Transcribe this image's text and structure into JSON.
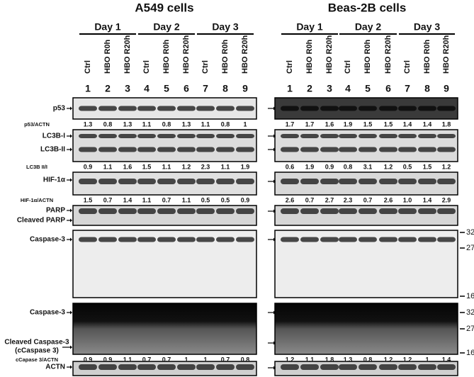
{
  "panels": [
    {
      "title": "A549 cells",
      "days": [
        "Day 1",
        "Day 2",
        "Day 3"
      ],
      "lanes": [
        "Ctrl",
        "HBO R0h",
        "HBO R20h",
        "Ctrl",
        "HBO R0h",
        "HBO R20h",
        "Ctrl",
        "HBO R0h",
        "HBO R20h"
      ],
      "lane_numbers": [
        1,
        2,
        3,
        4,
        5,
        6,
        7,
        8,
        9
      ],
      "quantification": [
        [
          "1.3",
          "0.8",
          "1.3",
          "1.1",
          "0.8",
          "1.3",
          "1.1",
          "0.8",
          "1"
        ],
        [
          "0.9",
          "1.1",
          "1.6",
          "1.5",
          "1.1",
          "1.2",
          "2.3",
          "1.1",
          "1.9"
        ],
        [
          "1.5",
          "0.7",
          "1.4",
          "1.1",
          "0.7",
          "1.1",
          "0.5",
          "0.5",
          "0.9"
        ],
        [
          "0.9",
          "0.9",
          "1.1",
          "0.7",
          "0.7",
          "1",
          "1",
          "0.7",
          "0.8"
        ]
      ]
    },
    {
      "title": "Beas-2B cells",
      "days": [
        "Day 1",
        "Day 2",
        "Day 3"
      ],
      "lanes": [
        "Ctrl",
        "HBO R0h",
        "HBO R20h",
        "Ctrl",
        "HBO R0h",
        "HBO R20h",
        "Ctrl",
        "HBO R0h",
        "HBO R20h"
      ],
      "lane_numbers": [
        1,
        2,
        3,
        4,
        5,
        6,
        7,
        8,
        9
      ],
      "quantification": [
        [
          "1.7",
          "1.7",
          "1.6",
          "1.9",
          "1.5",
          "1.5",
          "1.4",
          "1.4",
          "1.8"
        ],
        [
          "0.6",
          "1.9",
          "0.9",
          "0.8",
          "3.1",
          "1.2",
          "0.5",
          "1.5",
          "1.2"
        ],
        [
          "2.6",
          "0.7",
          "2.7",
          "2.3",
          "0.7",
          "2.6",
          "1.0",
          "1.4",
          "2.9"
        ],
        [
          "1.2",
          "1.1",
          "1.8",
          "1.3",
          "0.8",
          "1.2",
          "1.2",
          "1",
          "1.4"
        ]
      ]
    }
  ],
  "row_labels": [
    "p53",
    "LC3B-I",
    "LC3B-II",
    "HIF-1α",
    "PARP",
    "Cleaved PARP",
    "Caspase-3",
    "Caspase-3",
    "Cleaved Caspase-3",
    "(cCaspase 3)",
    "ACTN"
  ],
  "quant_labels": [
    "p53/ACTN",
    "LC3B II/I",
    "HIF-1α/ACTN",
    "cCapase 3/ACTN"
  ],
  "markers": [
    [
      "32",
      "27",
      "16"
    ],
    [
      "32",
      "27",
      "16"
    ]
  ]
}
